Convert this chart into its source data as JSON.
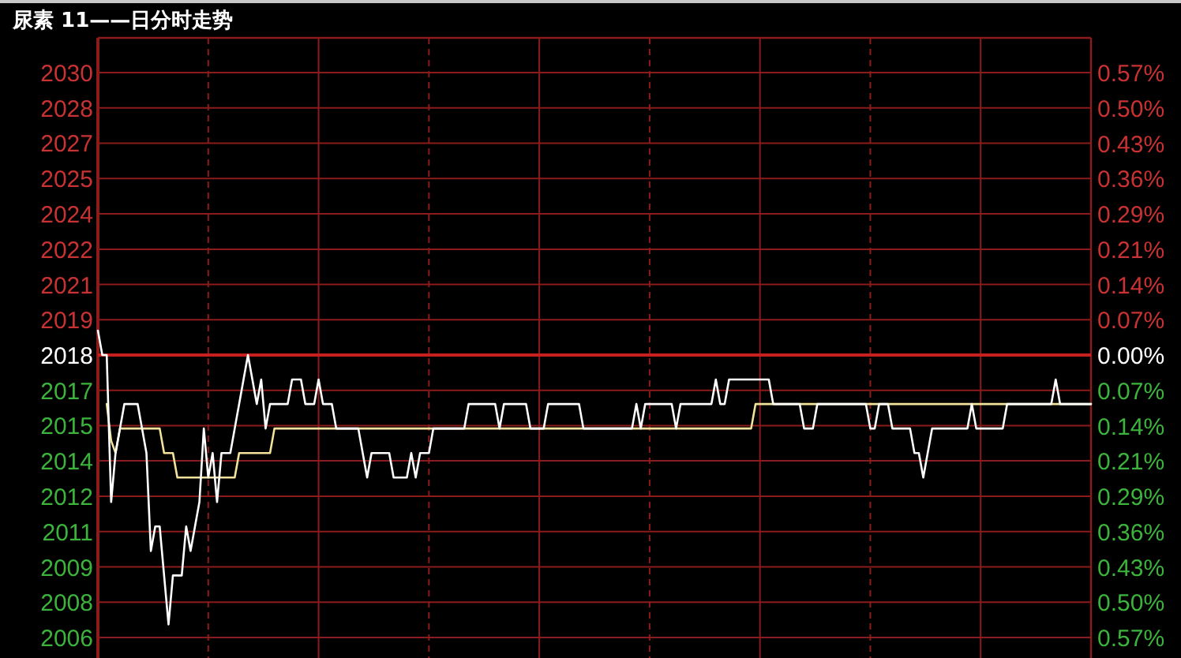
{
  "chart_data": {
    "type": "line",
    "title": "尿素 11——日分时走势",
    "categories": [
      null,
      null,
      null,
      null,
      null,
      null,
      null,
      null,
      null,
      null,
      null,
      null,
      null,
      null,
      null,
      null,
      null,
      null,
      null,
      null,
      null,
      null,
      null,
      null,
      null,
      null,
      null,
      null,
      null,
      null,
      null,
      null,
      null,
      null,
      null,
      null,
      null,
      null,
      null,
      null,
      null,
      null,
      null,
      null,
      null,
      null,
      null,
      null,
      null,
      null,
      null,
      null,
      null,
      null,
      null,
      null,
      null,
      null,
      null,
      null,
      null,
      null,
      null,
      null,
      null,
      null,
      null,
      null,
      null,
      null,
      null,
      null,
      null,
      null,
      null,
      null,
      null,
      null,
      null,
      null,
      null,
      null,
      null,
      null,
      null,
      null,
      null,
      null,
      null,
      null,
      null,
      null,
      null,
      null,
      null,
      null,
      null,
      null,
      null,
      null,
      null,
      null,
      null,
      null,
      null,
      null,
      null,
      null,
      null,
      null,
      null,
      null,
      null,
      null,
      null,
      null,
      null,
      null,
      null,
      null,
      null,
      null,
      null,
      null,
      null,
      null,
      null,
      null,
      null,
      null,
      null,
      null,
      null,
      null,
      null,
      null,
      null,
      null,
      null,
      null,
      null,
      null,
      null,
      null,
      null,
      null,
      null,
      null,
      null,
      null,
      null,
      null,
      null,
      null,
      null,
      null,
      null,
      null,
      null,
      null,
      null,
      null,
      null,
      null,
      null,
      null,
      null,
      null,
      null,
      null,
      null,
      null,
      null,
      null,
      null,
      null,
      null,
      null,
      null,
      null,
      null,
      null,
      null,
      null,
      null,
      null,
      null,
      null,
      null,
      null,
      null,
      null,
      null,
      null,
      null,
      null,
      null,
      null,
      null,
      null,
      null,
      null,
      null,
      null,
      null,
      null,
      null,
      null,
      null,
      null,
      null,
      null,
      null,
      null,
      null,
      null,
      null,
      null,
      null,
      null,
      null,
      null,
      null,
      null,
      null,
      null
    ],
    "ylim": [
      2005.63,
      2030.95
    ],
    "yticks": [
      {
        "value": 2006.47,
        "label": "2006"
      },
      {
        "value": 2007.91,
        "label": "2008"
      },
      {
        "value": 2009.35,
        "label": "2009"
      },
      {
        "value": 2010.79,
        "label": "2011"
      },
      {
        "value": 2012.23,
        "label": "2012"
      },
      {
        "value": 2013.68,
        "label": "2014"
      },
      {
        "value": 2015.12,
        "label": "2015"
      },
      {
        "value": 2016.56,
        "label": "2017"
      },
      {
        "value": 2018,
        "label": "2018"
      },
      {
        "value": 2019.44,
        "label": "2019"
      },
      {
        "value": 2020.88,
        "label": "2021"
      },
      {
        "value": 2022.32,
        "label": "2022"
      },
      {
        "value": 2023.77,
        "label": "2024"
      },
      {
        "value": 2025.21,
        "label": "2025"
      },
      {
        "value": 2026.65,
        "label": "2027"
      },
      {
        "value": 2028.09,
        "label": "2028"
      },
      {
        "value": 2029.53,
        "label": "2030"
      }
    ],
    "y2lim": [
      -0.613,
      0.642
    ],
    "y2ticks": [
      {
        "value": -0.5714,
        "label": "0.57%"
      },
      {
        "value": -0.5,
        "label": "0.50%"
      },
      {
        "value": -0.4286,
        "label": "0.43%"
      },
      {
        "value": -0.3571,
        "label": "0.36%"
      },
      {
        "value": -0.2857,
        "label": "0.29%"
      },
      {
        "value": -0.2143,
        "label": "0.21%"
      },
      {
        "value": -0.1429,
        "label": "0.14%"
      },
      {
        "value": -0.0714,
        "label": "0.07%"
      },
      {
        "value": 0,
        "label": "0.00%"
      },
      {
        "value": 0.0714,
        "label": "0.07%"
      },
      {
        "value": 0.1429,
        "label": "0.14%"
      },
      {
        "value": 0.2143,
        "label": "0.21%"
      },
      {
        "value": 0.2857,
        "label": "0.29%"
      },
      {
        "value": 0.3571,
        "label": "0.36%"
      },
      {
        "value": 0.4286,
        "label": "0.43%"
      },
      {
        "value": 0.5,
        "label": "0.50%"
      },
      {
        "value": 0.5714,
        "label": "0.57%"
      }
    ],
    "grid": true,
    "ref_lines": [
      {
        "axis": "y",
        "value": 2018,
        "color": "#c8201e"
      }
    ],
    "series": [
      {
        "color": "#ffffff",
        "values": [
          2019,
          2018,
          2018,
          2012,
          2014,
          2015,
          2016,
          2016,
          2016,
          2016,
          2015,
          2014,
          2010,
          2011,
          2011,
          2009,
          2007,
          2009,
          2009,
          2009,
          2011,
          2010,
          2011,
          2012,
          2015,
          2013,
          2014,
          2012,
          2014,
          2014,
          2014,
          2015,
          2016,
          2017,
          2018,
          2017,
          2016,
          2017,
          2015,
          2016,
          2016,
          2016,
          2016,
          2016,
          2017,
          2017,
          2017,
          2016,
          2016,
          2016,
          2017,
          2016,
          2016,
          2016,
          2015,
          2015,
          2015,
          2015,
          2015,
          2015,
          2014,
          2013,
          2014,
          2014,
          2014,
          2014,
          2014,
          2013,
          2013,
          2013,
          2013,
          2014,
          2013,
          2014,
          2014,
          2014,
          2015,
          2015,
          2015,
          2015,
          2015,
          2015,
          2015,
          2015,
          2016,
          2016,
          2016,
          2016,
          2016,
          2016,
          2016,
          2015,
          2016,
          2016,
          2016,
          2016,
          2016,
          2016,
          2015,
          2015,
          2015,
          2015,
          2016,
          2016,
          2016,
          2016,
          2016,
          2016,
          2016,
          2016,
          2015,
          2015,
          2015,
          2015,
          2015,
          2015,
          2015,
          2015,
          2015,
          2015,
          2015,
          2015,
          2016,
          2015,
          2016,
          2016,
          2016,
          2016,
          2016,
          2016,
          2016,
          2015,
          2016,
          2016,
          2016,
          2016,
          2016,
          2016,
          2016,
          2016,
          2017,
          2016,
          2016,
          2017,
          2017,
          2017,
          2017,
          2017,
          2017,
          2017,
          2017,
          2017,
          2017,
          2016,
          2016,
          2016,
          2016,
          2016,
          2016,
          2016,
          2015,
          2015,
          2015,
          2016,
          2016,
          2016,
          2016,
          2016,
          2016,
          2016,
          2016,
          2016,
          2016,
          2016,
          2016,
          2015,
          2015,
          2016,
          2016,
          2016,
          2015,
          2015,
          2015,
          2015,
          2015,
          2014,
          2014,
          2013,
          2014,
          2015,
          2015,
          2015,
          2015,
          2015,
          2015,
          2015,
          2015,
          2015,
          2016,
          2015,
          2015,
          2015,
          2015,
          2015,
          2015,
          2015,
          2016,
          2016,
          2016,
          2016,
          2016,
          2016,
          2016,
          2016,
          2016,
          2016,
          2016,
          2017,
          2016,
          2016,
          2016,
          2016,
          2016,
          2016,
          2016,
          2016
        ]
      },
      {
        "color": "#f2e29a",
        "values": [
          null,
          null,
          2016,
          2014.5,
          2014,
          2015,
          2015,
          2015,
          2015,
          2015,
          2015,
          2015,
          2015,
          2015,
          2015,
          2014,
          2014,
          2014,
          2013,
          2013,
          2013,
          2013,
          2013,
          2013,
          2013,
          2013,
          2013,
          2013,
          2013,
          2013,
          2013,
          2013,
          2014,
          2014,
          2014,
          2014,
          2014,
          2014,
          2014,
          2014,
          2015,
          2015,
          2015,
          2015,
          2015,
          2015,
          2015,
          2015,
          2015,
          2015,
          2015,
          2015,
          2015,
          2015,
          2015,
          2015,
          2015,
          2015,
          2015,
          2015,
          2015,
          2015,
          2015,
          2015,
          2015,
          2015,
          2015,
          2015,
          2015,
          2015,
          2015,
          2015,
          2015,
          2015,
          2015,
          2015,
          2015,
          2015,
          2015,
          2015,
          2015,
          2015,
          2015,
          2015,
          2015,
          2015,
          2015,
          2015,
          2015,
          2015,
          2015,
          2015,
          2015,
          2015,
          2015,
          2015,
          2015,
          2015,
          2015,
          2015,
          2015,
          2015,
          2015,
          2015,
          2015,
          2015,
          2015,
          2015,
          2015,
          2015,
          2015,
          2015,
          2015,
          2015,
          2015,
          2015,
          2015,
          2015,
          2015,
          2015,
          2015,
          2015,
          2015,
          2015,
          2015,
          2015,
          2015,
          2015,
          2015,
          2015,
          2015,
          2015,
          2015,
          2015,
          2015,
          2015,
          2015,
          2015,
          2015,
          2015,
          2015,
          2015,
          2015,
          2015,
          2015,
          2015,
          2015,
          2015,
          2015,
          2016,
          2016,
          2016,
          2016,
          2016,
          2016,
          2016,
          2016,
          2016,
          2016,
          2016,
          2016,
          2016,
          2016,
          2016,
          2016,
          2016,
          2016,
          2016,
          2016,
          2016,
          2016,
          2016,
          2016,
          2016,
          2016,
          2016,
          2016,
          2016,
          2016,
          2016,
          2016,
          2016,
          2016,
          2016,
          2016,
          2016,
          2016,
          2016,
          2016,
          2016,
          2016,
          2016,
          2016,
          2016,
          2016,
          2016,
          2016,
          2016,
          2016,
          2016,
          2016,
          2016,
          2016,
          2016,
          2016,
          2016,
          2016,
          2016,
          2016,
          2016,
          2016,
          2016,
          2016,
          2016,
          2016,
          2016,
          2016,
          2016,
          2016,
          2016,
          2016,
          2016,
          2016,
          2016,
          2016,
          2016
        ]
      }
    ]
  }
}
